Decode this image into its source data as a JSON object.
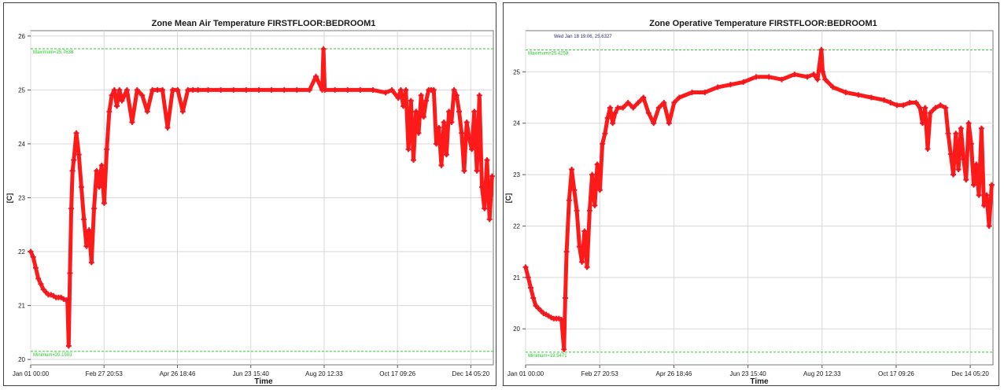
{
  "chart_data": [
    {
      "type": "scatter",
      "title": "Zone Mean Air Temperature  FIRSTFLOOR:BEDROOM1",
      "xlabel": "Time",
      "ylabel": "[C]",
      "x_ticks": [
        "Jan 01 00:00",
        "Feb 27 20:53",
        "Apr 26 18:46",
        "Jun 23 15:40",
        "Aug 20 12:33",
        "Oct 17 09:26",
        "Dec 14 05:20"
      ],
      "x_tick_days": [
        0,
        57.87,
        115.78,
        173.65,
        231.52,
        289.39,
        347.22
      ],
      "xlim": [
        0,
        365
      ],
      "ylim": [
        19.9,
        26.1
      ],
      "y_ticks": [
        20,
        21,
        22,
        23,
        24,
        25,
        26
      ],
      "grid": true,
      "colors": {
        "series": "#ff1a1a",
        "marker_center": "#8a2080",
        "reference": "#33cc33"
      },
      "reference_lines": [
        {
          "label": "Maximum=25.7638",
          "value": 25.7638
        },
        {
          "label": "Minimum=20.1503",
          "value": 20.1503
        }
      ],
      "series": [
        {
          "x": [
            0,
            2,
            4,
            6,
            8,
            10,
            12,
            14,
            16,
            18,
            20,
            22,
            24,
            26,
            28,
            29,
            30,
            31,
            32,
            33,
            34,
            36,
            38,
            40,
            42,
            44,
            46,
            48,
            50,
            52,
            54,
            56,
            58,
            60,
            62,
            64,
            66,
            68,
            70,
            72,
            76,
            80,
            84,
            88,
            92,
            96,
            100,
            104,
            108,
            112,
            116,
            120,
            124,
            128,
            132,
            140,
            150,
            160,
            170,
            180,
            190,
            200,
            210,
            220,
            225,
            230,
            231,
            232,
            240,
            250,
            260,
            270,
            280,
            285,
            290,
            292,
            294,
            296,
            298,
            300,
            302,
            304,
            306,
            308,
            310,
            312,
            314,
            316,
            318,
            320,
            322,
            324,
            326,
            328,
            330,
            332,
            334,
            336,
            338,
            340,
            342,
            344,
            346,
            348,
            350,
            352,
            354,
            356,
            358,
            360,
            362,
            364
          ],
          "y": [
            22.0,
            21.9,
            21.7,
            21.5,
            21.4,
            21.3,
            21.25,
            21.2,
            21.2,
            21.18,
            21.15,
            21.15,
            21.15,
            21.12,
            21.1,
            21.1,
            20.25,
            21.6,
            22.8,
            23.5,
            23.7,
            24.2,
            23.8,
            23.2,
            22.6,
            22.1,
            22.4,
            21.8,
            22.8,
            23.5,
            23.2,
            23.6,
            22.9,
            23.9,
            24.6,
            24.9,
            25.0,
            24.7,
            25.0,
            24.8,
            25.0,
            24.4,
            25.0,
            24.9,
            24.6,
            25.0,
            25.0,
            25.0,
            24.3,
            25.0,
            25.0,
            24.6,
            25.0,
            25.0,
            25.0,
            25.0,
            25.0,
            25.0,
            25.0,
            25.0,
            25.0,
            25.0,
            25.0,
            25.0,
            25.25,
            25.0,
            25.76,
            25.0,
            25.0,
            25.0,
            25.0,
            25.0,
            24.95,
            25.0,
            24.85,
            25.0,
            24.7,
            25.0,
            23.9,
            24.8,
            23.7,
            24.6,
            24.2,
            24.9,
            24.5,
            24.8,
            25.0,
            25.0,
            25.0,
            24.0,
            24.3,
            23.6,
            24.4,
            23.8,
            24.6,
            24.4,
            25.0,
            24.9,
            24.6,
            24.2,
            23.5,
            24.4,
            24.1,
            23.9,
            24.6,
            23.5,
            24.9,
            23.2,
            22.8,
            23.7,
            22.6,
            23.4
          ]
        }
      ]
    },
    {
      "type": "scatter",
      "title": "Zone Operative Temperature  FIRSTFLOOR:BEDROOM1",
      "xlabel": "Time",
      "ylabel": "[C]",
      "cursor_label": "Wed Jan 18 19:06, 25.6327",
      "x_ticks": [
        "Jan 01 00:00",
        "Feb 27 20:53",
        "Apr 26 18:46",
        "Jun 23 15:40",
        "Aug 20 12:33",
        "Oct 17 09:26",
        "Dec 14 05:20"
      ],
      "x_tick_days": [
        0,
        57.87,
        115.78,
        173.65,
        231.52,
        289.39,
        347.22
      ],
      "xlim": [
        0,
        365
      ],
      "ylim": [
        19.3,
        25.8
      ],
      "y_ticks": [
        20,
        21,
        22,
        23,
        24,
        25
      ],
      "grid": true,
      "colors": {
        "series": "#ff1a1a",
        "marker_center": "#8a2080",
        "reference": "#33cc33"
      },
      "reference_lines": [
        {
          "label": "Maximum=25.4258",
          "value": 25.4258
        },
        {
          "label": "Minimum=19.5471",
          "value": 19.5471
        }
      ],
      "series": [
        {
          "x": [
            0,
            2,
            4,
            6,
            8,
            10,
            12,
            14,
            16,
            18,
            20,
            22,
            24,
            26,
            28,
            30,
            31,
            32,
            34,
            36,
            38,
            40,
            42,
            44,
            46,
            48,
            50,
            52,
            54,
            56,
            58,
            60,
            62,
            64,
            66,
            68,
            70,
            72,
            76,
            80,
            84,
            88,
            92,
            96,
            100,
            104,
            108,
            112,
            116,
            120,
            130,
            140,
            150,
            160,
            170,
            180,
            190,
            200,
            210,
            220,
            225,
            228,
            231,
            232,
            234,
            240,
            250,
            260,
            270,
            280,
            285,
            290,
            295,
            300,
            305,
            308,
            310,
            312,
            314,
            316,
            320,
            324,
            328,
            330,
            332,
            334,
            336,
            338,
            340,
            342,
            344,
            346,
            348,
            350,
            352,
            354,
            356,
            358,
            360,
            362,
            364
          ],
          "y": [
            21.2,
            21.0,
            20.8,
            20.6,
            20.45,
            20.4,
            20.35,
            20.3,
            20.28,
            20.25,
            20.22,
            20.2,
            20.2,
            20.2,
            20.18,
            19.6,
            20.6,
            21.5,
            22.5,
            23.1,
            22.7,
            22.3,
            21.6,
            21.3,
            21.9,
            21.2,
            22.3,
            23.0,
            22.4,
            23.2,
            22.7,
            23.6,
            23.8,
            24.1,
            24.3,
            24.0,
            24.2,
            24.3,
            24.3,
            24.4,
            24.3,
            24.4,
            24.5,
            24.2,
            24.0,
            24.3,
            24.4,
            24.0,
            24.4,
            24.5,
            24.6,
            24.6,
            24.7,
            24.75,
            24.8,
            24.9,
            24.9,
            24.85,
            24.95,
            24.9,
            24.95,
            24.85,
            25.43,
            25.0,
            24.85,
            24.7,
            24.6,
            24.55,
            24.5,
            24.45,
            24.4,
            24.35,
            24.35,
            24.4,
            24.4,
            24.3,
            24.0,
            24.3,
            23.5,
            24.2,
            24.3,
            24.35,
            24.3,
            23.8,
            23.4,
            23.0,
            23.8,
            23.1,
            23.9,
            23.3,
            22.9,
            24.0,
            23.6,
            22.8,
            23.2,
            22.6,
            23.9,
            22.4,
            22.6,
            22.0,
            22.8
          ]
        }
      ]
    }
  ]
}
